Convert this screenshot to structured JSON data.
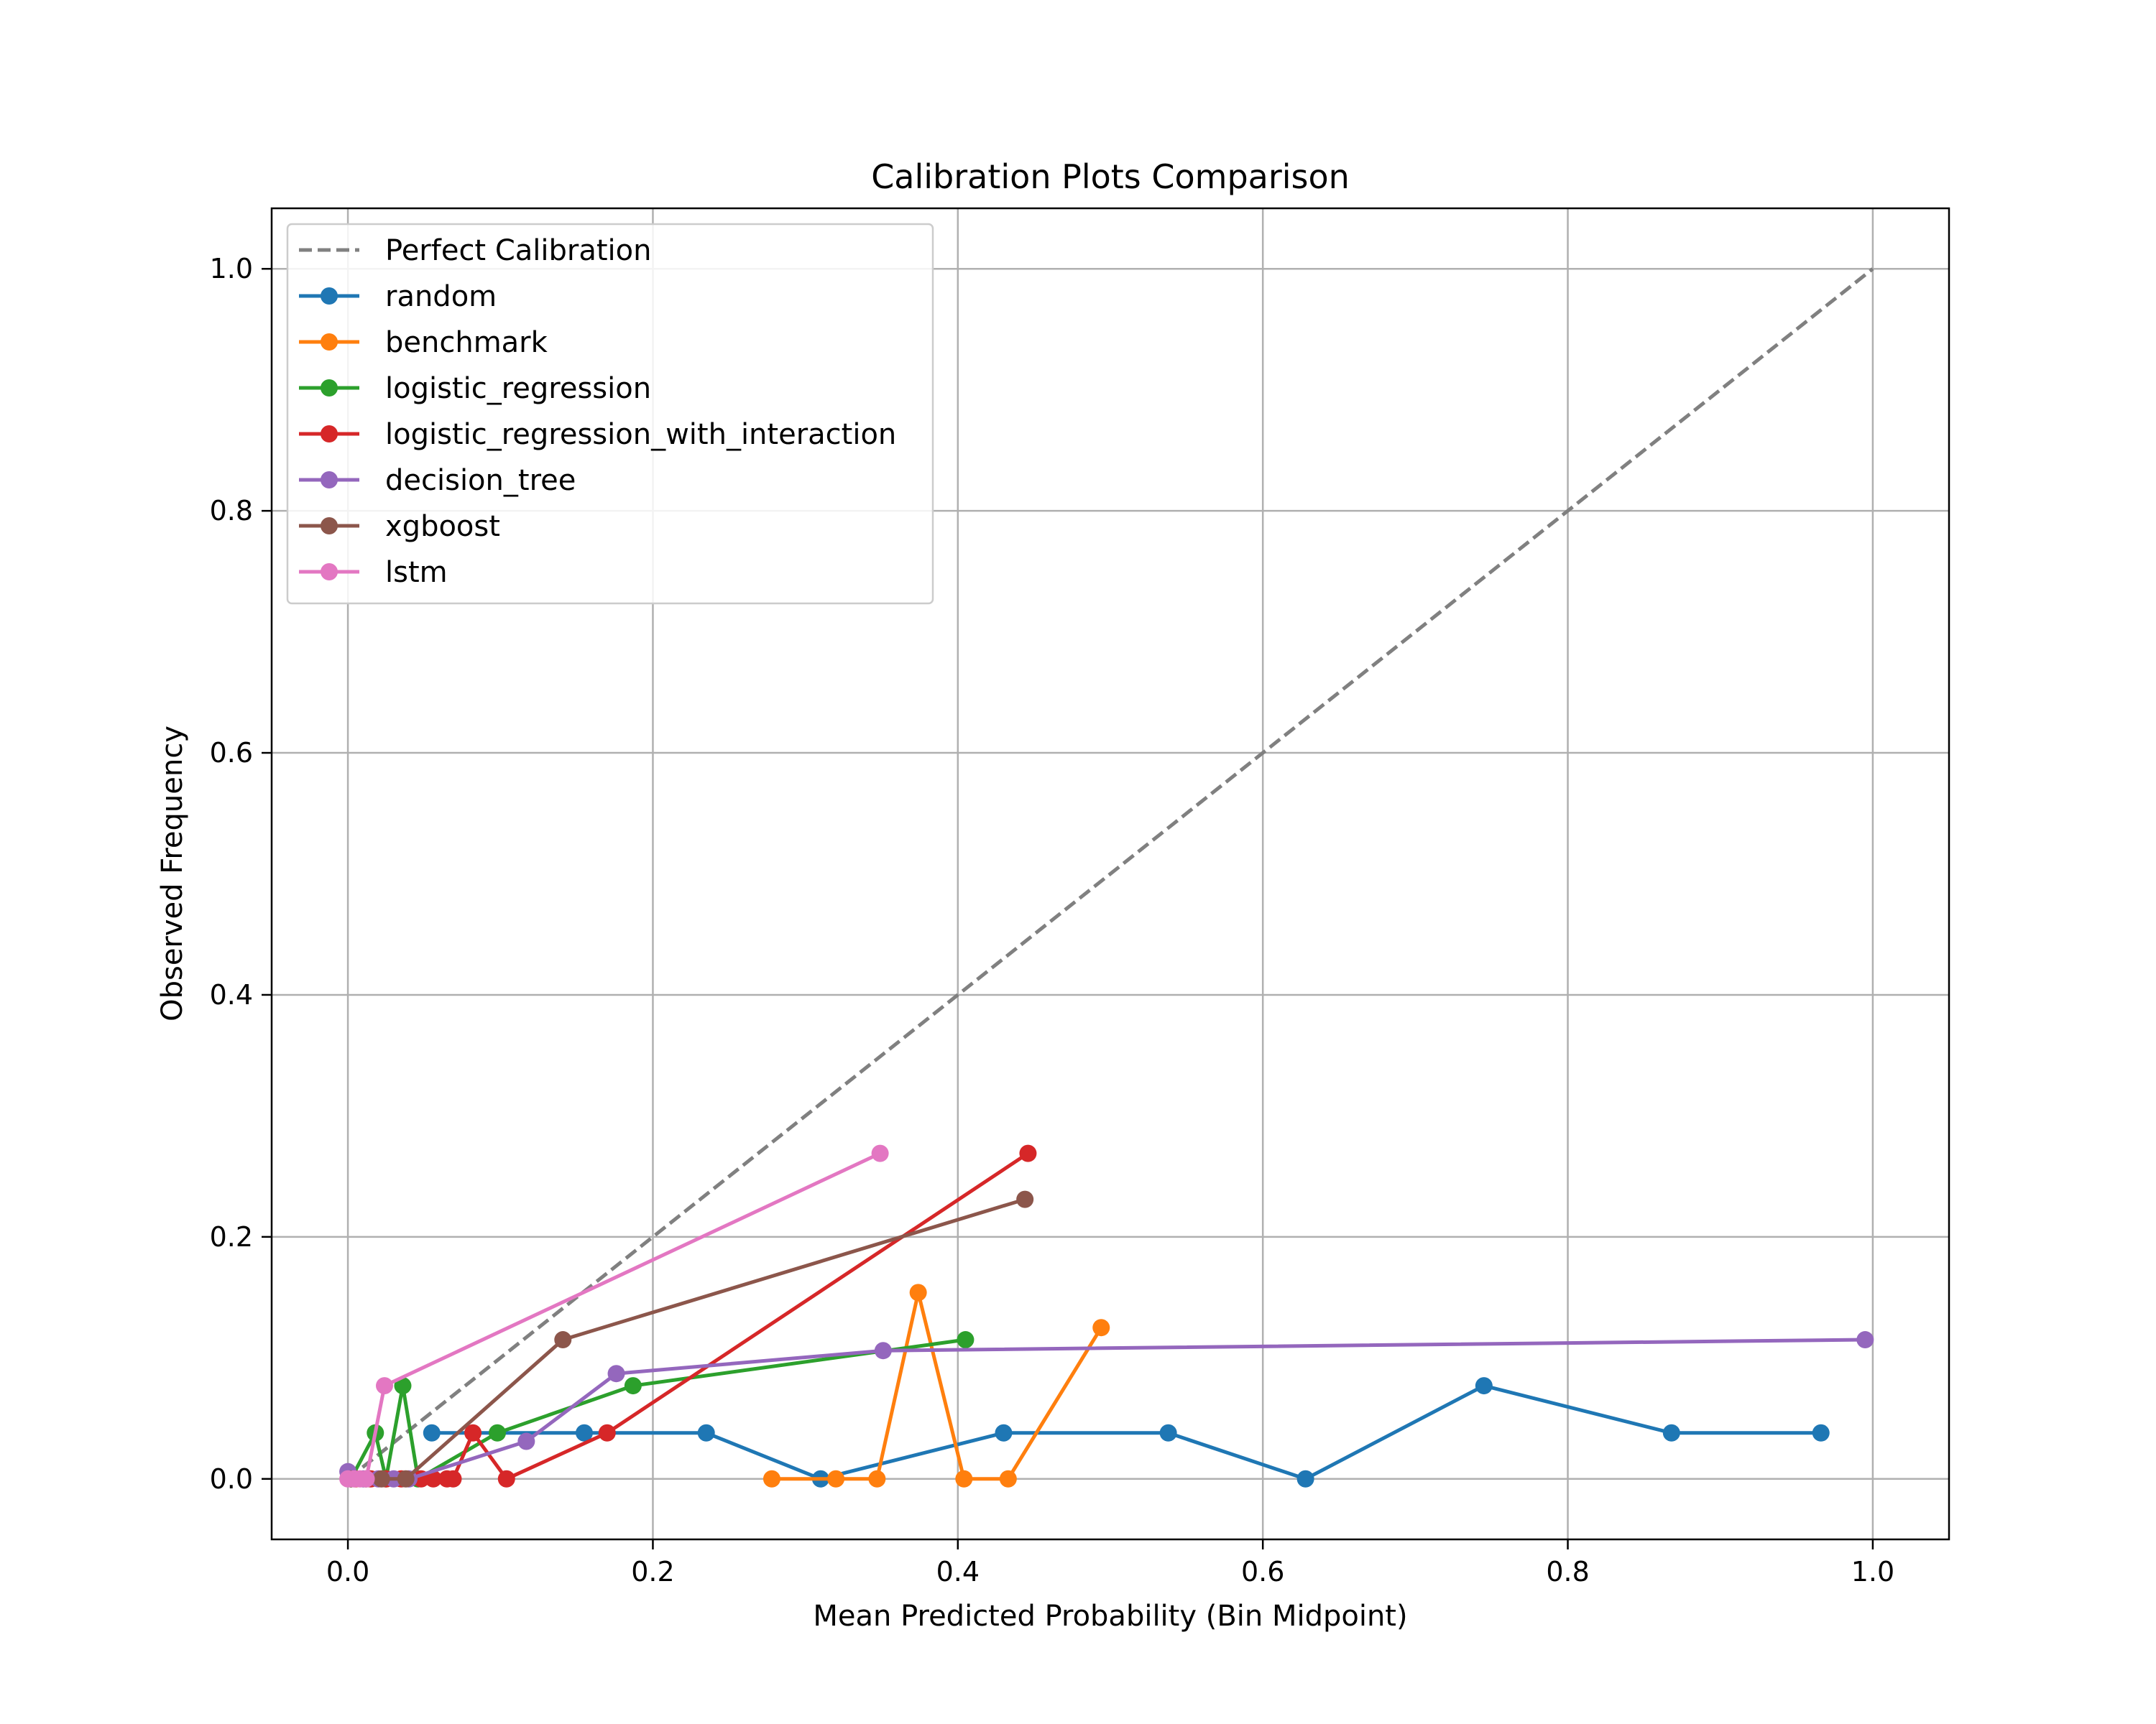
{
  "chart_data": {
    "type": "line",
    "title": "Calibration Plots Comparison",
    "xlabel": "Mean Predicted Probability (Bin Midpoint)",
    "ylabel": "Observed Frequency",
    "xlim": [
      -0.05,
      1.05
    ],
    "ylim": [
      -0.05,
      1.05
    ],
    "xticks": [
      0.0,
      0.2,
      0.4,
      0.6,
      0.8,
      1.0
    ],
    "yticks": [
      0.0,
      0.2,
      0.4,
      0.6,
      0.8,
      1.0
    ],
    "xtick_labels": [
      "0.0",
      "0.2",
      "0.4",
      "0.6",
      "0.8",
      "1.0"
    ],
    "ytick_labels": [
      "0.0",
      "0.2",
      "0.4",
      "0.6",
      "0.8",
      "1.0"
    ],
    "grid": true,
    "legend_position": "upper-left",
    "reference_line": {
      "name": "Perfect Calibration",
      "x": [
        0.0,
        1.0
      ],
      "y": [
        0.0,
        1.0
      ],
      "color": "#808080",
      "style": "dashed"
    },
    "series": [
      {
        "name": "random",
        "color": "#1f77b4",
        "x": [
          0.055,
          0.155,
          0.235,
          0.31,
          0.43,
          0.538,
          0.628,
          0.745,
          0.868,
          0.966
        ],
        "y": [
          0.038,
          0.038,
          0.038,
          0.0,
          0.038,
          0.038,
          0.0,
          0.077,
          0.038,
          0.038
        ]
      },
      {
        "name": "benchmark",
        "color": "#ff7f0e",
        "x": [
          0.278,
          0.32,
          0.347,
          0.374,
          0.404,
          0.433,
          0.494
        ],
        "y": [
          0.0,
          0.0,
          0.0,
          0.154,
          0.0,
          0.0,
          0.125
        ]
      },
      {
        "name": "logistic_regression",
        "color": "#2ca02c",
        "x": [
          0.002,
          0.018,
          0.025,
          0.036,
          0.046,
          0.098,
          0.187,
          0.405
        ],
        "y": [
          0.0,
          0.038,
          0.0,
          0.077,
          0.0,
          0.038,
          0.077,
          0.115
        ]
      },
      {
        "name": "logistic_regression_with_interaction",
        "color": "#d62728",
        "x": [
          0.005,
          0.015,
          0.025,
          0.035,
          0.048,
          0.056,
          0.065,
          0.069,
          0.082,
          0.104,
          0.17,
          0.446
        ],
        "y": [
          0.0,
          0.0,
          0.0,
          0.0,
          0.0,
          0.0,
          0.0,
          0.0,
          0.038,
          0.0,
          0.038,
          0.269
        ]
      },
      {
        "name": "decision_tree",
        "color": "#9467bd",
        "x": [
          0.0,
          0.01,
          0.02,
          0.03,
          0.04,
          0.117,
          0.176,
          0.351,
          0.995
        ],
        "y": [
          0.006,
          0.0,
          0.0,
          0.0,
          0.0,
          0.031,
          0.087,
          0.106,
          0.115
        ]
      },
      {
        "name": "xgboost",
        "color": "#8c564b",
        "x": [
          0.002,
          0.012,
          0.022,
          0.038,
          0.141,
          0.444
        ],
        "y": [
          0.0,
          0.0,
          0.0,
          0.0,
          0.115,
          0.231
        ]
      },
      {
        "name": "lstm",
        "color": "#e377c2",
        "x": [
          0.0,
          0.004,
          0.008,
          0.012,
          0.024,
          0.349
        ],
        "y": [
          0.0,
          0.0,
          0.0,
          0.0,
          0.077,
          0.269
        ]
      }
    ]
  }
}
